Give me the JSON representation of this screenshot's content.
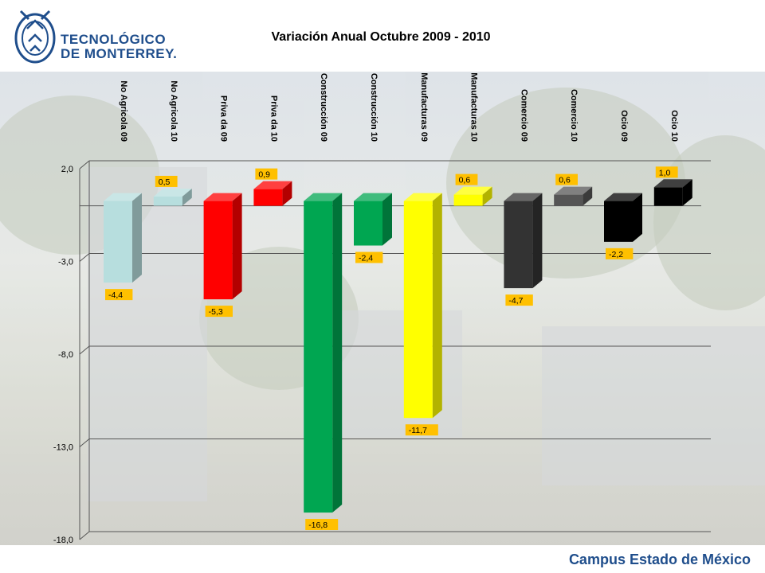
{
  "header": {
    "logo_line1": "TECNOLÓGICO",
    "logo_line2": "DE MONTERREY."
  },
  "footer": {
    "campus": "Campus Estado de México"
  },
  "chart_data": {
    "type": "bar",
    "title": "Variación Anual Octubre 2009 - 2010",
    "categories": [
      "No Agricola 09",
      "No Agricola 10",
      "Priva da 09",
      "Priva da 10",
      "Construcción 09",
      "Construcción 10",
      "Manufacturas 09",
      "Manufacturas 10",
      "Comercio 09",
      "Comercio 10",
      "Ocio 09",
      "Ocio 10"
    ],
    "values": [
      -4.4,
      0.5,
      -5.3,
      0.9,
      -16.8,
      -2.4,
      -11.7,
      0.6,
      -4.7,
      0.6,
      -2.2,
      1.0
    ],
    "value_labels": [
      "-4,4",
      "0,5",
      "-5,3",
      "0,9",
      "-16,8",
      "-2,4",
      "-11,7",
      "0,6",
      "-4,7",
      "0,6",
      "-2,2",
      "1,0"
    ],
    "colors": [
      "#b7dede",
      "#b7dede",
      "#ff0000",
      "#ff0000",
      "#00a651",
      "#00a651",
      "#ffff00",
      "#ffff00",
      "#333333",
      "#555555",
      "#000000",
      "#000000"
    ],
    "yticks": [
      "2,0",
      "-3,0",
      "-8,0",
      "-13,0",
      "-18,0"
    ],
    "ytick_values": [
      2,
      -3,
      -8,
      -13,
      -18
    ],
    "ylim": [
      -18,
      2
    ],
    "grid": true,
    "legend": "none"
  }
}
